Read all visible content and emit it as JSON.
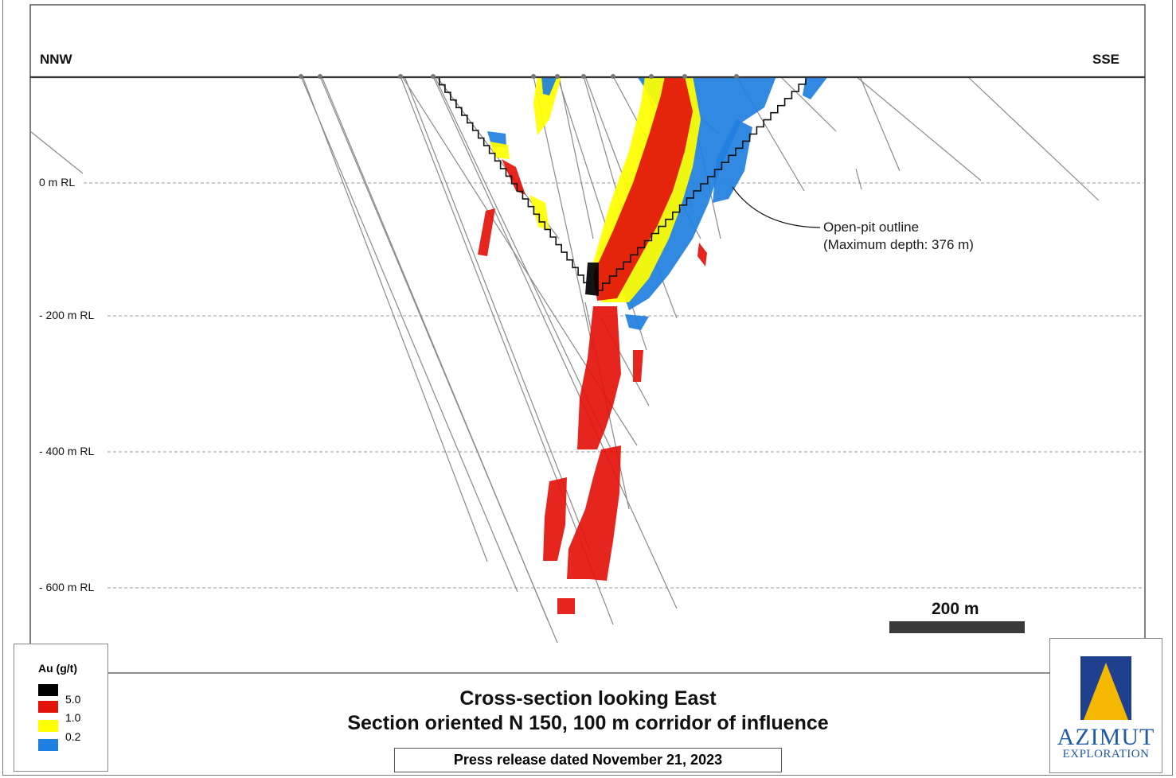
{
  "orientation": {
    "left": "NNW",
    "right": "SSE"
  },
  "elevations": [
    "0 m RL",
    "- 200 m RL",
    "- 400 m RL",
    "- 600 m RL"
  ],
  "callout": {
    "line1": "Open-pit outline",
    "line2": "(Maximum depth: 376 m)"
  },
  "scale_bar": {
    "label": "200 m",
    "color": "#3a3a3a"
  },
  "legend": {
    "title": "Au (g/t)",
    "items": [
      {
        "color": "#000000",
        "label": "5.0"
      },
      {
        "color": "#e3120b",
        "label": "1.0"
      },
      {
        "color": "#ffff00",
        "label": "0.2"
      },
      {
        "color": "#1f7fe0",
        "label": ""
      }
    ]
  },
  "title": {
    "line1": "Cross-section looking East",
    "line2": "Section oriented N 150, 100 m corridor of influence"
  },
  "press_release": "Press release dated November 21, 2023",
  "logo": {
    "name": "AZIMUT",
    "sub": "EXPLORATION",
    "blue": "#1f3f8f",
    "gold": "#f5b800"
  },
  "colors": {
    "grade_high": "#000000",
    "grade_mid": "#e3120b",
    "grade_low": "#ffff00",
    "grade_min": "#1f7fe0",
    "drill_trace": "#8a8a8a",
    "pit_outline": "#111111"
  }
}
